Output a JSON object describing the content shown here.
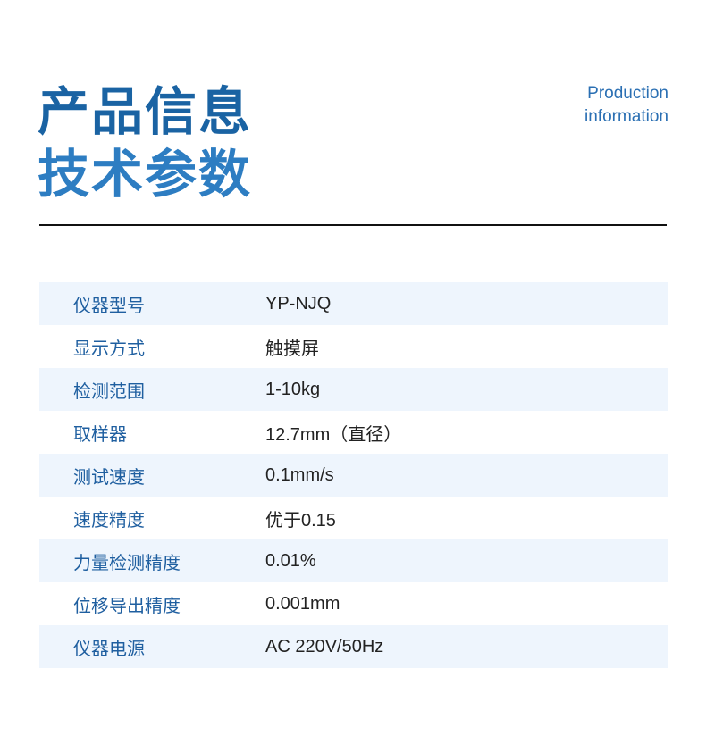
{
  "header": {
    "title_line1": "产品信息",
    "title_line2": "技术参数",
    "en_line1": "Production",
    "en_line2": "information"
  },
  "specs": [
    {
      "label": "仪器型号",
      "value": "YP-NJQ"
    },
    {
      "label": "显示方式",
      "value": "触摸屏"
    },
    {
      "label": "检测范围",
      "value": "1-10kg"
    },
    {
      "label": "取样器",
      "value": "12.7mm（直径）"
    },
    {
      "label": "测试速度",
      "value": " 0.1mm/s"
    },
    {
      "label": "速度精度",
      "value": "优于0.15"
    },
    {
      "label": "力量检测精度",
      "value": "0.01%"
    },
    {
      "label": "位移导出精度",
      "value": "0.001mm"
    },
    {
      "label": "仪器电源",
      "value": "AC 220V/50Hz"
    }
  ]
}
